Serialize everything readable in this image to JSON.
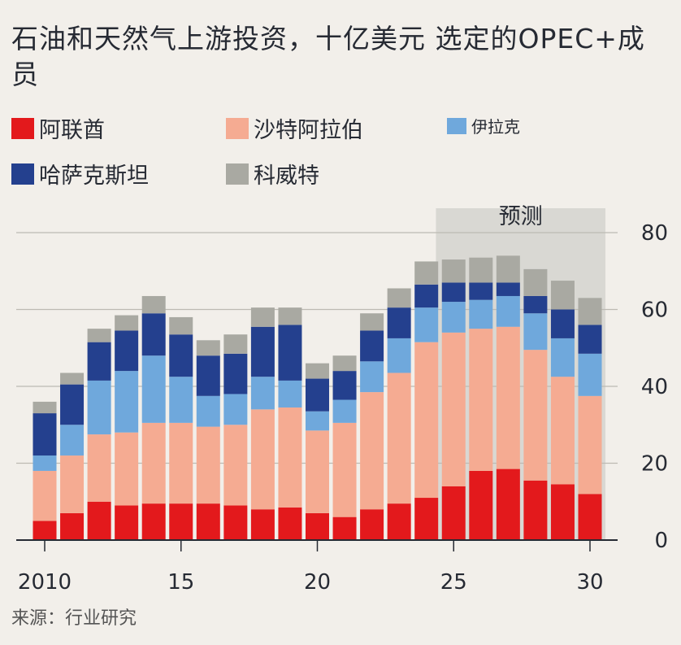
{
  "chart_data": {
    "type": "bar",
    "stacked": true,
    "title": "石油和天然气上游投资，十亿美元 选定的OPEC+成员",
    "source": "来源：行业研究",
    "forecast_label": "预测",
    "forecast_from": 2025,
    "x": [
      2010,
      2011,
      2012,
      2013,
      2014,
      2015,
      2016,
      2017,
      2018,
      2019,
      2020,
      2021,
      2022,
      2023,
      2024,
      2025,
      2026,
      2027,
      2028,
      2029,
      2030
    ],
    "x_tick_labels": [
      {
        "x": 2010,
        "label": "2010"
      },
      {
        "x": 2015,
        "label": "15"
      },
      {
        "x": 2020,
        "label": "20"
      },
      {
        "x": 2025,
        "label": "25"
      },
      {
        "x": 2030,
        "label": "30"
      }
    ],
    "y_ticks": [
      0,
      20,
      40,
      60,
      80
    ],
    "ylim": [
      0,
      80
    ],
    "grid": true,
    "y_axis_position": "right",
    "series": [
      {
        "name": "阿联酋",
        "color": "#e3191c",
        "values": [
          5,
          7,
          10,
          9,
          9.5,
          9.5,
          9.5,
          9,
          8,
          8.5,
          7,
          6,
          8,
          9.5,
          11,
          14,
          18,
          18.5,
          15.5,
          14.5,
          12
        ]
      },
      {
        "name": "沙特阿拉伯",
        "color": "#f5ab92",
        "values": [
          13,
          15,
          17.5,
          19,
          21,
          21,
          20,
          21,
          26,
          26,
          21.5,
          24.5,
          30.5,
          34,
          40.5,
          40,
          37,
          37,
          34,
          28,
          25.5
        ]
      },
      {
        "name": "伊拉克",
        "color": "#6fa8dc",
        "values": [
          4,
          8,
          14,
          16,
          17.5,
          12,
          8,
          8,
          8.5,
          7,
          5,
          6,
          8,
          9,
          9,
          8,
          7.5,
          8,
          9.5,
          10,
          11
        ]
      },
      {
        "name": "哈萨克斯坦",
        "color": "#24408e",
        "values": [
          11,
          10.5,
          10,
          10.5,
          11,
          11,
          10.5,
          10.5,
          13,
          14.5,
          8.5,
          7.5,
          8,
          8,
          6,
          5,
          4.5,
          3.5,
          4.5,
          7.5,
          7.5
        ]
      },
      {
        "name": "科威特",
        "color": "#a9a9a2",
        "values": [
          3,
          3,
          3.5,
          4,
          4.5,
          4.5,
          4,
          5,
          5,
          4.5,
          4,
          4,
          4.5,
          5,
          6,
          6,
          6.5,
          7,
          7,
          7.5,
          7
        ]
      }
    ]
  }
}
